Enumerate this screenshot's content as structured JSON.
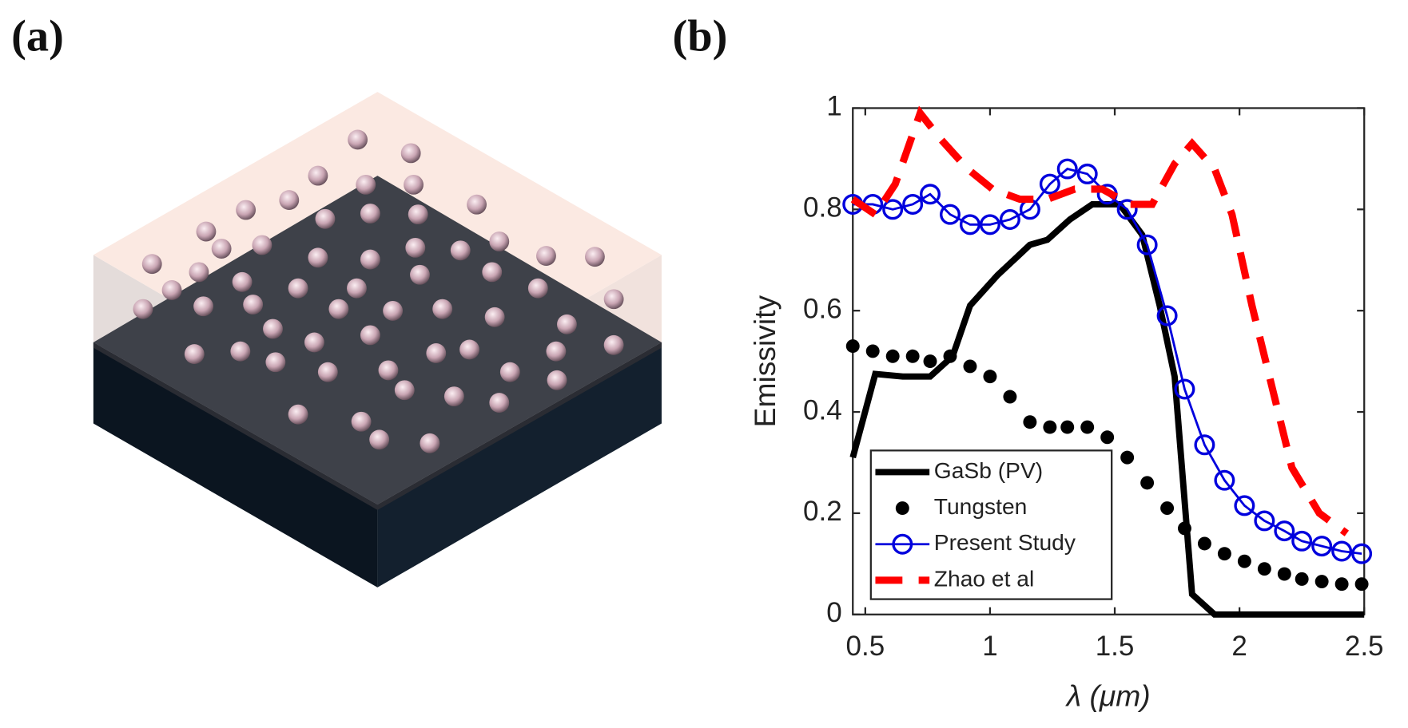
{
  "panel_labels": [
    "(a)",
    "(b)"
  ],
  "chart_data": {
    "type": "line",
    "xlabel": "λ (μm)",
    "ylabel": "Emissivity",
    "xlim": [
      0.45,
      2.5
    ],
    "ylim": [
      0,
      1
    ],
    "xticks": [
      0.5,
      1,
      1.5,
      2,
      2.5
    ],
    "yticks": [
      0,
      0.2,
      0.4,
      0.6,
      0.8,
      1
    ],
    "legend": "lower-left",
    "series": [
      {
        "name": "GaSb (PV)",
        "color": "#000000",
        "line": "solid",
        "marker": "none",
        "x": [
          0.45,
          0.54,
          0.65,
          0.76,
          0.85,
          0.92,
          1.03,
          1.16,
          1.23,
          1.32,
          1.41,
          1.52,
          1.61,
          1.68,
          1.74,
          1.81,
          1.9,
          2.5
        ],
        "values": [
          0.31,
          0.475,
          0.47,
          0.47,
          0.51,
          0.61,
          0.67,
          0.73,
          0.74,
          0.78,
          0.81,
          0.81,
          0.75,
          0.61,
          0.47,
          0.04,
          0,
          0
        ]
      },
      {
        "name": "Tungsten",
        "color": "#000000",
        "line": "none",
        "marker": "dot",
        "x": [
          0.45,
          0.53,
          0.61,
          0.69,
          0.76,
          0.84,
          0.92,
          1.0,
          1.08,
          1.16,
          1.24,
          1.31,
          1.39,
          1.47,
          1.55,
          1.63,
          1.71,
          1.78,
          1.86,
          1.94,
          2.02,
          2.1,
          2.18,
          2.25,
          2.33,
          2.41,
          2.49
        ],
        "values": [
          0.53,
          0.52,
          0.51,
          0.51,
          0.5,
          0.51,
          0.49,
          0.47,
          0.43,
          0.38,
          0.37,
          0.37,
          0.37,
          0.35,
          0.31,
          0.26,
          0.21,
          0.17,
          0.14,
          0.12,
          0.105,
          0.09,
          0.08,
          0.07,
          0.065,
          0.06,
          0.06
        ]
      },
      {
        "name": "Present Study",
        "color": "#0000dd",
        "line": "solid",
        "marker": "circle",
        "x": [
          0.45,
          0.53,
          0.61,
          0.69,
          0.76,
          0.84,
          0.92,
          1.0,
          1.08,
          1.16,
          1.24,
          1.31,
          1.39,
          1.47,
          1.55,
          1.63,
          1.71,
          1.78,
          1.86,
          1.94,
          2.02,
          2.1,
          2.18,
          2.25,
          2.33,
          2.41,
          2.49
        ],
        "values": [
          0.81,
          0.81,
          0.8,
          0.81,
          0.83,
          0.79,
          0.77,
          0.77,
          0.78,
          0.8,
          0.85,
          0.88,
          0.87,
          0.83,
          0.8,
          0.73,
          0.59,
          0.445,
          0.335,
          0.265,
          0.215,
          0.185,
          0.165,
          0.145,
          0.135,
          0.125,
          0.12
        ]
      },
      {
        "name": "Zhao et al",
        "color": "#ff0000",
        "line": "dashed",
        "marker": "none",
        "x": [
          0.45,
          0.54,
          0.62,
          0.67,
          0.72,
          0.8,
          0.91,
          1.01,
          1.12,
          1.23,
          1.34,
          1.45,
          1.56,
          1.65,
          1.74,
          1.81,
          1.9,
          1.97,
          2.05,
          2.12,
          2.21,
          2.32,
          2.43
        ],
        "values": [
          0.82,
          0.79,
          0.85,
          0.92,
          0.99,
          0.94,
          0.88,
          0.84,
          0.82,
          0.82,
          0.84,
          0.84,
          0.81,
          0.81,
          0.89,
          0.93,
          0.88,
          0.79,
          0.61,
          0.47,
          0.29,
          0.2,
          0.16
        ]
      }
    ]
  }
}
